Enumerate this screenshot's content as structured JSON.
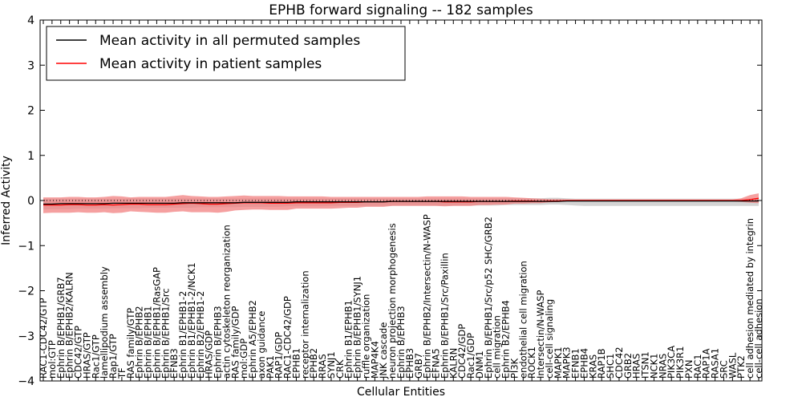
{
  "chart_data": {
    "type": "line",
    "title": "EPHB forward signaling -- 182 samples",
    "xlabel": "Cellular Entities",
    "ylabel": "Inferred Activity",
    "ylim": [
      -4,
      4
    ],
    "yticks": [
      "4",
      "3",
      "2",
      "1",
      "0",
      "−1",
      "−2",
      "−3",
      "−4"
    ],
    "grid": false,
    "legend": "top-left",
    "categories": [
      "RAC1-CDC42/GTP",
      "mol:GTP",
      "Ephrin B/EPHB1/GRB7",
      "Ephrin B/EPHB2/KALRN",
      "CDC42/GTP",
      "HRAS/GTP",
      "Rac1/GTP",
      "lamellipodium assembly",
      "Rap1/GTP",
      "TF",
      "RAS family/GTP",
      "Ephrin B/EPHB2",
      "Ephrin B/EPHB1",
      "Ephrin B/EPHB1/RasGAP",
      "Ephrin B/EPHB1/Src",
      "EFNB3",
      "Ephrin B1/EPHB1-2",
      "Ephrin B1/EPHB1-2/NCK1",
      "Ephrin B2/EPHB1-2",
      "HRAS/GDP",
      "Ephrin B/EPHB3",
      "actin cytoskeleton reorganization",
      "RAS family/GDP",
      "mol:GDP",
      "Ephrin A5/EPHB2",
      "axon guidance",
      "PAK1",
      "RAP1/GDP",
      "RAC1-CDC42/GDP",
      "EPHB1",
      "receptor internalization",
      "EPHB2",
      "RRAS",
      "SYNJ1",
      "CRK",
      "Ephrin B1/EPHB1",
      "Ephrin B/EPHB1/SYNJ1",
      "ruffle organization",
      "MAP4K4",
      "JNK cascade",
      "neuron projection morphogenesis",
      "Ephrin B/EPHB3",
      "EPHB3",
      "GRB7",
      "Ephrin B/EPHB2/Intersectin/N-WASP",
      "EFNA5",
      "Ephrin B/EPHB1/Src/Paxillin",
      "KALRN",
      "CDC42/GDP",
      "Rac1/GDP",
      "DNM1",
      "Ephrin B/EPHB1/Src/p52 SHC/GRB2",
      "cell migration",
      "Ephrin B2/EPHB4",
      "PI3K",
      "endothelial cell migration",
      "ROCK1",
      "Intersectin/N-WASP",
      "cell-cell signaling",
      "MAPK1",
      "MAPK3",
      "EFNB1",
      "EPHB4",
      "KRAS",
      "RAP1B",
      "SHC1",
      "CDC42",
      "GRB2",
      "HRAS",
      "ITSN1",
      "NCK1",
      "NRAS",
      "PIK3CA",
      "PIK3R1",
      "PXN",
      "RAC1",
      "RAP1A",
      "RASA1",
      "SRC",
      "WASL",
      "PTK2",
      "cell adhesion mediated by integrin",
      "cell-cell adhesion"
    ],
    "series": [
      {
        "name": "Mean activity in all permuted samples",
        "color": "#000000",
        "values": [
          -0.08,
          -0.08,
          -0.07,
          -0.07,
          -0.07,
          -0.07,
          -0.07,
          -0.07,
          -0.06,
          -0.06,
          -0.06,
          -0.06,
          -0.06,
          -0.06,
          -0.06,
          -0.06,
          -0.05,
          -0.05,
          -0.05,
          -0.05,
          -0.05,
          -0.05,
          -0.05,
          -0.04,
          -0.04,
          -0.04,
          -0.04,
          -0.04,
          -0.04,
          -0.03,
          -0.03,
          -0.03,
          -0.03,
          -0.03,
          -0.03,
          -0.03,
          -0.03,
          -0.03,
          -0.03,
          -0.03,
          -0.02,
          -0.02,
          -0.02,
          -0.02,
          -0.02,
          -0.02,
          -0.02,
          -0.02,
          -0.02,
          -0.02,
          -0.02,
          -0.02,
          -0.02,
          -0.02,
          -0.02,
          -0.02,
          -0.02,
          -0.02,
          -0.02,
          -0.02,
          -0.01,
          -0.01,
          -0.01,
          -0.01,
          -0.01,
          -0.01,
          -0.01,
          -0.01,
          -0.01,
          -0.01,
          -0.01,
          -0.01,
          -0.01,
          -0.01,
          -0.01,
          -0.01,
          -0.01,
          -0.01,
          -0.01,
          -0.01,
          -0.01,
          -0.01,
          -0.01
        ],
        "band_low": [
          -0.2,
          -0.19,
          -0.19,
          -0.19,
          -0.18,
          -0.18,
          -0.18,
          -0.18,
          -0.17,
          -0.17,
          -0.17,
          -0.17,
          -0.16,
          -0.16,
          -0.16,
          -0.16,
          -0.16,
          -0.16,
          -0.15,
          -0.15,
          -0.15,
          -0.15,
          -0.15,
          -0.14,
          -0.14,
          -0.14,
          -0.14,
          -0.14,
          -0.13,
          -0.13,
          -0.13,
          -0.13,
          -0.13,
          -0.12,
          -0.12,
          -0.12,
          -0.12,
          -0.12,
          -0.12,
          -0.12,
          -0.11,
          -0.11,
          -0.11,
          -0.11,
          -0.11,
          -0.11,
          -0.11,
          -0.11,
          -0.11,
          -0.11,
          -0.11,
          -0.11,
          -0.11,
          -0.1,
          -0.1,
          -0.1,
          -0.1,
          -0.1,
          -0.09,
          -0.09,
          -0.1,
          -0.11,
          -0.12,
          -0.12,
          -0.12,
          -0.12,
          -0.12,
          -0.12,
          -0.12,
          -0.12,
          -0.12,
          -0.12,
          -0.12,
          -0.12,
          -0.12,
          -0.12,
          -0.12,
          -0.12,
          -0.12,
          -0.12,
          -0.12,
          -0.12,
          -0.12
        ],
        "band_high": [
          0.04,
          0.04,
          0.04,
          0.04,
          0.04,
          0.04,
          0.04,
          0.04,
          0.04,
          0.04,
          0.05,
          0.05,
          0.05,
          0.05,
          0.05,
          0.05,
          0.05,
          0.05,
          0.05,
          0.05,
          0.05,
          0.05,
          0.05,
          0.05,
          0.05,
          0.05,
          0.05,
          0.05,
          0.05,
          0.05,
          0.05,
          0.05,
          0.05,
          0.05,
          0.05,
          0.05,
          0.05,
          0.05,
          0.05,
          0.05,
          0.05,
          0.05,
          0.05,
          0.05,
          0.05,
          0.05,
          0.05,
          0.05,
          0.05,
          0.05,
          0.05,
          0.05,
          0.05,
          0.05,
          0.05,
          0.05,
          0.05,
          0.05,
          0.06,
          0.06,
          0.05,
          0.04,
          0.04,
          0.04,
          0.04,
          0.04,
          0.04,
          0.04,
          0.04,
          0.04,
          0.04,
          0.04,
          0.04,
          0.04,
          0.04,
          0.04,
          0.04,
          0.04,
          0.04,
          0.04,
          0.04,
          0.04,
          0.04
        ],
        "band_color": "#cccccc"
      },
      {
        "name": "Mean activity in patient samples",
        "color": "#ff0000",
        "values": [
          -0.1,
          -0.1,
          -0.1,
          -0.09,
          -0.09,
          -0.1,
          -0.1,
          -0.09,
          -0.1,
          -0.09,
          -0.08,
          -0.08,
          -0.09,
          -0.09,
          -0.09,
          -0.08,
          -0.07,
          -0.06,
          -0.07,
          -0.08,
          -0.08,
          -0.07,
          -0.06,
          -0.05,
          -0.05,
          -0.05,
          -0.06,
          -0.06,
          -0.06,
          -0.05,
          -0.05,
          -0.05,
          -0.05,
          -0.05,
          -0.04,
          -0.04,
          -0.04,
          -0.03,
          -0.03,
          -0.03,
          -0.02,
          -0.02,
          -0.02,
          -0.02,
          -0.02,
          -0.02,
          -0.03,
          -0.03,
          -0.03,
          -0.03,
          -0.02,
          -0.02,
          -0.02,
          -0.02,
          -0.01,
          -0.01,
          -0.01,
          -0.02,
          -0.01,
          -0.01,
          0.0,
          0.0,
          0.0,
          0.0,
          0.0,
          0.0,
          0.0,
          0.0,
          0.0,
          0.0,
          0.0,
          0.0,
          0.0,
          0.0,
          0.0,
          0.0,
          0.0,
          0.0,
          0.0,
          0.0,
          0.0,
          0.02,
          0.05
        ],
        "band_low": [
          -0.28,
          -0.27,
          -0.27,
          -0.27,
          -0.26,
          -0.27,
          -0.27,
          -0.26,
          -0.28,
          -0.27,
          -0.24,
          -0.25,
          -0.26,
          -0.27,
          -0.27,
          -0.25,
          -0.24,
          -0.26,
          -0.26,
          -0.26,
          -0.27,
          -0.25,
          -0.22,
          -0.21,
          -0.2,
          -0.2,
          -0.21,
          -0.21,
          -0.21,
          -0.18,
          -0.18,
          -0.18,
          -0.18,
          -0.18,
          -0.17,
          -0.16,
          -0.16,
          -0.14,
          -0.14,
          -0.14,
          -0.12,
          -0.12,
          -0.12,
          -0.12,
          -0.12,
          -0.12,
          -0.13,
          -0.12,
          -0.12,
          -0.12,
          -0.1,
          -0.1,
          -0.09,
          -0.09,
          -0.07,
          -0.07,
          -0.06,
          -0.06,
          -0.04,
          -0.03,
          -0.02,
          -0.02,
          -0.02,
          -0.02,
          -0.02,
          -0.02,
          -0.02,
          -0.02,
          -0.02,
          -0.02,
          -0.02,
          -0.02,
          -0.02,
          -0.02,
          -0.02,
          -0.02,
          -0.02,
          -0.02,
          -0.02,
          -0.02,
          -0.03,
          -0.05,
          -0.06
        ],
        "band_high": [
          0.07,
          0.07,
          0.07,
          0.08,
          0.08,
          0.07,
          0.07,
          0.08,
          0.1,
          0.09,
          0.07,
          0.08,
          0.08,
          0.08,
          0.08,
          0.1,
          0.12,
          0.1,
          0.09,
          0.08,
          0.08,
          0.09,
          0.1,
          0.11,
          0.1,
          0.1,
          0.1,
          0.1,
          0.09,
          0.09,
          0.09,
          0.09,
          0.09,
          0.08,
          0.08,
          0.08,
          0.08,
          0.08,
          0.08,
          0.08,
          0.08,
          0.08,
          0.08,
          0.08,
          0.09,
          0.09,
          0.09,
          0.09,
          0.09,
          0.08,
          0.08,
          0.08,
          0.08,
          0.08,
          0.07,
          0.06,
          0.05,
          0.04,
          0.03,
          0.03,
          0.02,
          0.02,
          0.02,
          0.02,
          0.02,
          0.02,
          0.02,
          0.02,
          0.02,
          0.02,
          0.02,
          0.02,
          0.02,
          0.02,
          0.02,
          0.02,
          0.02,
          0.02,
          0.02,
          0.02,
          0.05,
          0.12,
          0.16
        ],
        "band_color": "#f28080"
      }
    ]
  }
}
